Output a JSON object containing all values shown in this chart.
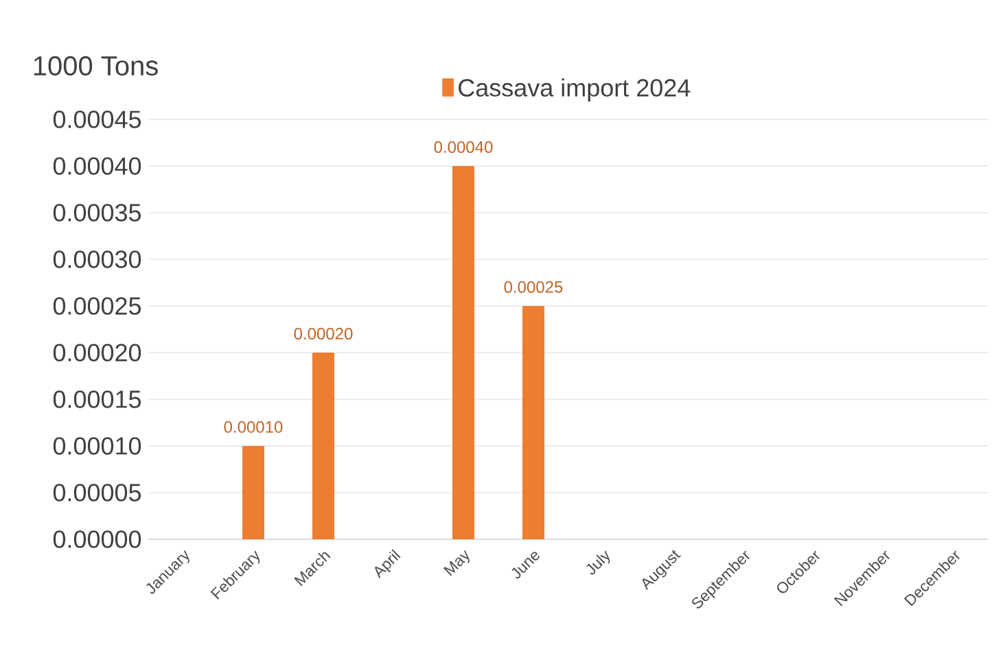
{
  "chart_data": {
    "type": "bar",
    "ylabel": "1000 Tons",
    "categories": [
      "January",
      "February",
      "March",
      "April",
      "May",
      "June",
      "July",
      "August",
      "September",
      "October",
      "November",
      "December"
    ],
    "series": [
      {
        "name": "Cassava import 2024",
        "color": "#ed7d31",
        "values": [
          null,
          0.0001,
          0.0002,
          null,
          0.0004,
          0.00025,
          null,
          null,
          null,
          null,
          null,
          null
        ],
        "value_labels": [
          null,
          "0.00010",
          "0.00020",
          null,
          "0.00040",
          "0.00025",
          null,
          null,
          null,
          null,
          null,
          null
        ]
      }
    ],
    "ylim": [
      0,
      0.00045
    ],
    "yticks": [
      {
        "value": 0,
        "label": "0.00000"
      },
      {
        "value": 5e-05,
        "label": "0.00005"
      },
      {
        "value": 0.0001,
        "label": "0.00010"
      },
      {
        "value": 0.00015,
        "label": "0.00015"
      },
      {
        "value": 0.0002,
        "label": "0.00020"
      },
      {
        "value": 0.00025,
        "label": "0.00025"
      },
      {
        "value": 0.0003,
        "label": "0.00030"
      },
      {
        "value": 0.00035,
        "label": "0.00035"
      },
      {
        "value": 0.0004,
        "label": "0.00040"
      },
      {
        "value": 0.00045,
        "label": "0.00045"
      }
    ],
    "grid": "y",
    "legend": "top"
  }
}
